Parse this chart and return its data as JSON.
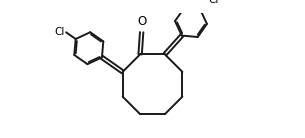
{
  "bg_color": "#ffffff",
  "line_color": "#1a1a1a",
  "line_width": 1.4,
  "figsize": [
    3.05,
    1.38
  ],
  "dpi": 100,
  "font_size_O": 8.5,
  "font_size_Cl": 7.5,
  "font_color": "#000000"
}
